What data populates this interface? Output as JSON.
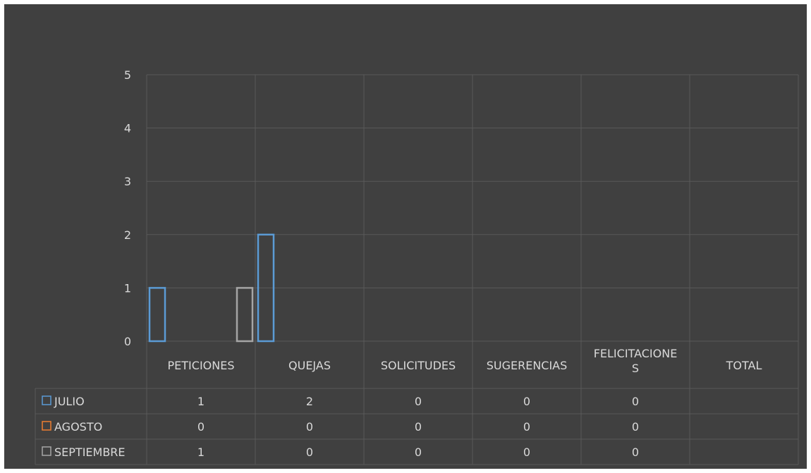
{
  "chart_data": {
    "type": "bar",
    "title": "",
    "xlabel": "",
    "ylabel": "",
    "ylim": [
      0,
      5
    ],
    "yticks": [
      "0",
      "1",
      "2",
      "3",
      "4",
      "5"
    ],
    "grid": true,
    "legend_placement": "data-table",
    "categories": [
      "PETICIONES",
      "QUEJAS",
      "SOLICITUDES",
      "SUGERENCIAS",
      "FELICITACIONES",
      "TOTAL"
    ],
    "category_labels": [
      [
        "PETICIONES"
      ],
      [
        "QUEJAS"
      ],
      [
        "SOLICITUDES"
      ],
      [
        "SUGERENCIAS"
      ],
      [
        "FELICITACIONE",
        "S"
      ],
      [
        "TOTAL"
      ]
    ],
    "series": [
      {
        "name": "JULIO",
        "color": "#5b9bd5",
        "values": [
          1,
          2,
          0,
          0,
          0,
          null
        ],
        "labels": [
          "1",
          "2",
          "0",
          "0",
          "0",
          ""
        ]
      },
      {
        "name": "AGOSTO",
        "color": "#ed7d31",
        "values": [
          0,
          0,
          0,
          0,
          0,
          null
        ],
        "labels": [
          "0",
          "0",
          "0",
          "0",
          "0",
          ""
        ]
      },
      {
        "name": "SEPTIEMBRE",
        "color": "#a5a5a5",
        "values": [
          1,
          0,
          0,
          0,
          0,
          null
        ],
        "labels": [
          "1",
          "0",
          "0",
          "0",
          "0",
          ""
        ]
      }
    ]
  }
}
